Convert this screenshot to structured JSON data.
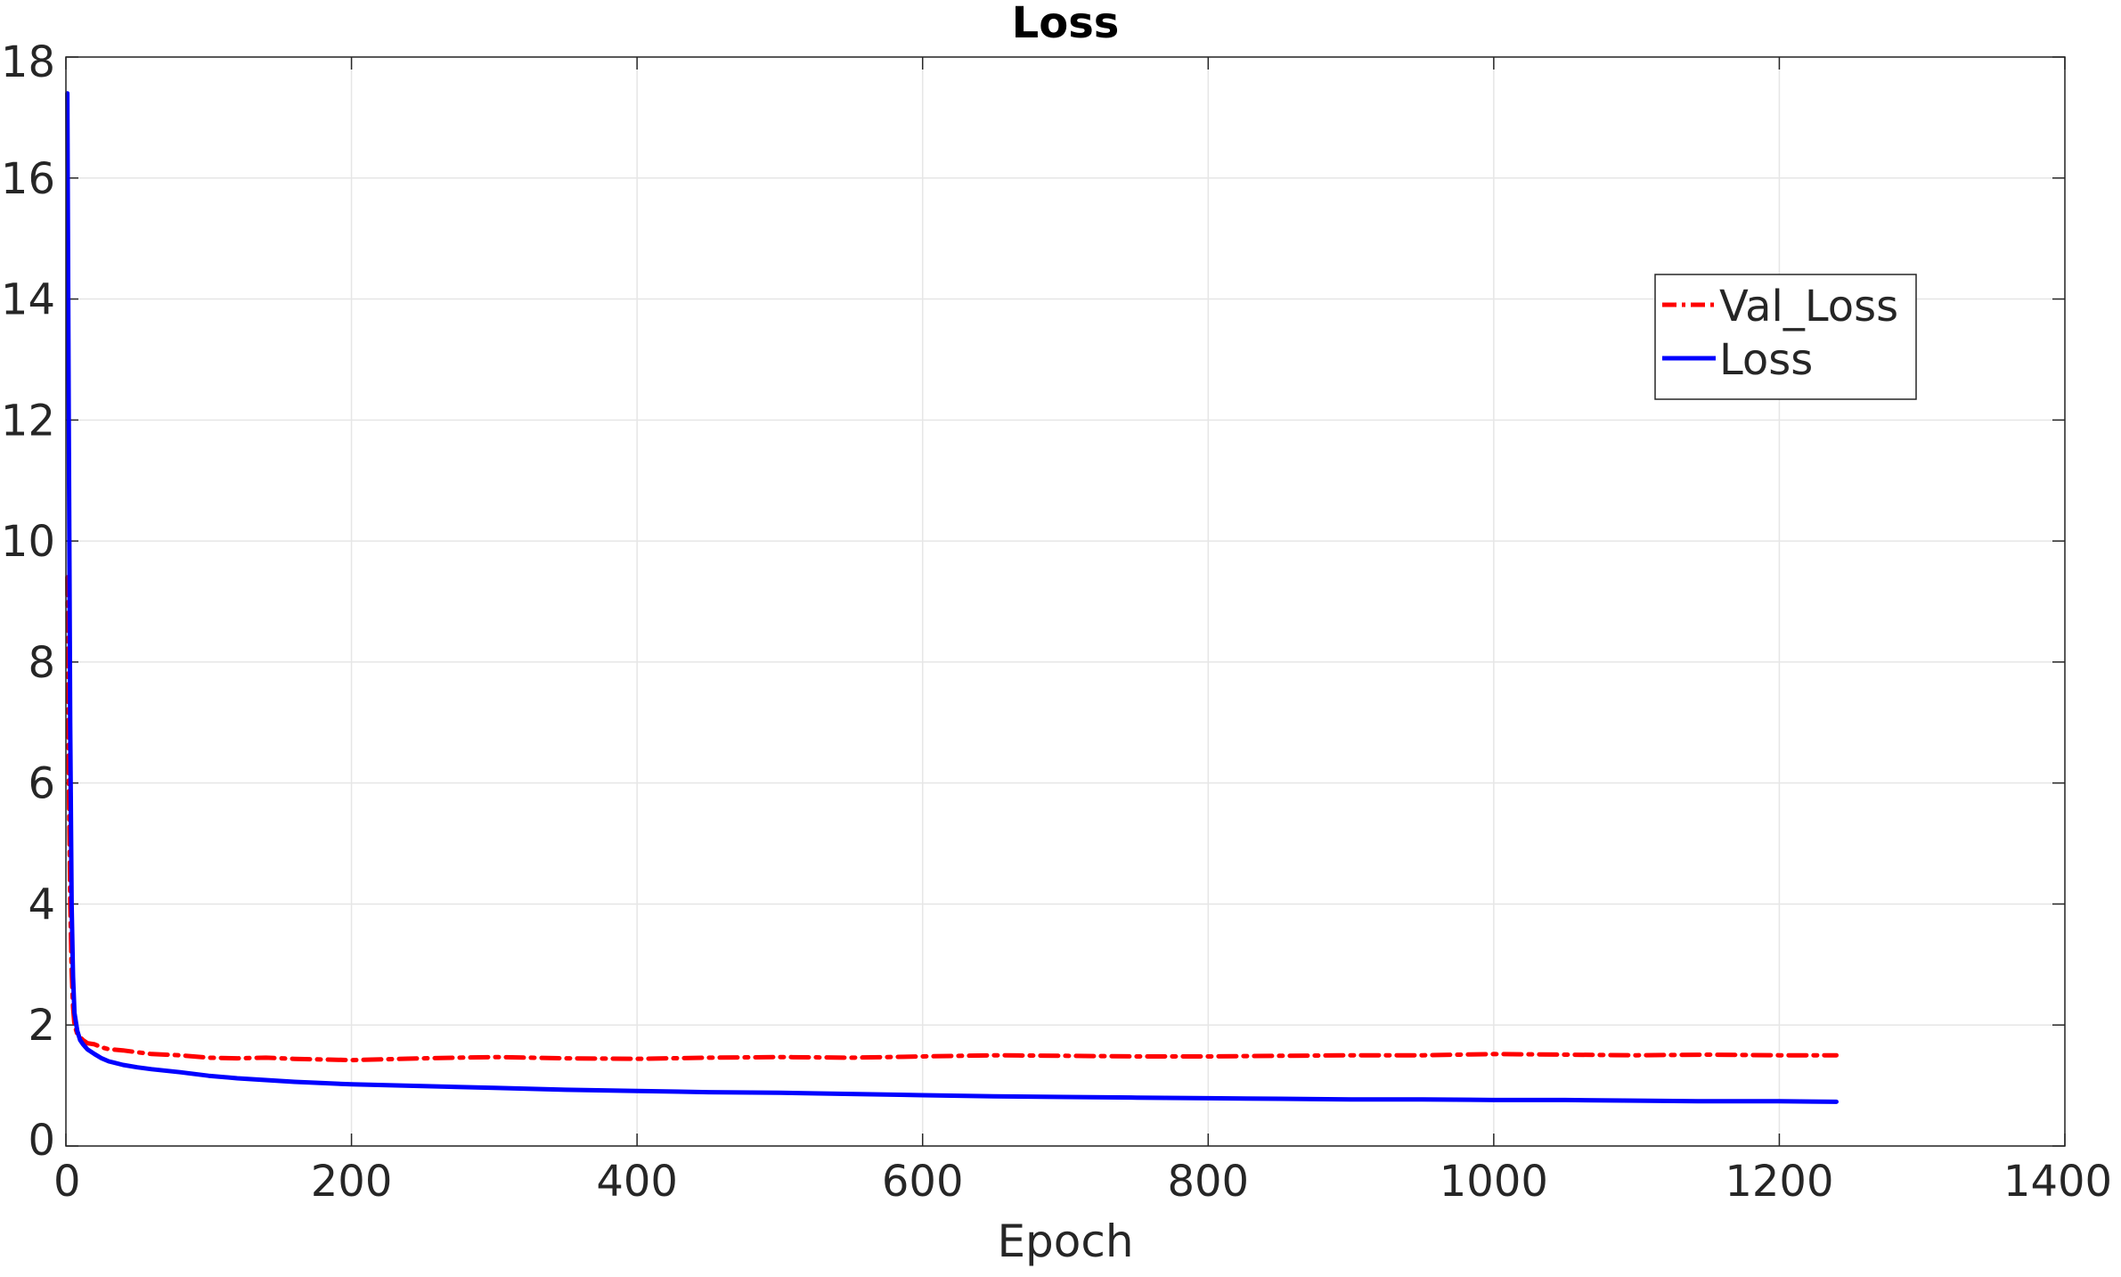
{
  "chart_data": {
    "type": "line",
    "title": "Loss",
    "xlabel": "Epoch",
    "ylabel": "",
    "xlim": [
      0,
      1400
    ],
    "ylim": [
      0,
      18
    ],
    "xticks": [
      0,
      200,
      400,
      600,
      800,
      1000,
      1200,
      1400
    ],
    "yticks": [
      0,
      2,
      4,
      6,
      8,
      10,
      12,
      14,
      16,
      18
    ],
    "xtick_labels": [
      "0",
      "200",
      "400",
      "600",
      "800",
      "1000",
      "1200",
      "1400"
    ],
    "ytick_labels": [
      "0",
      "2",
      "4",
      "6",
      "8",
      "10",
      "12",
      "14",
      "16",
      "18"
    ],
    "grid": true,
    "legend_position": "top-right",
    "series": [
      {
        "name": "Val_Loss",
        "color": "#ff0000",
        "style": "dash-dot",
        "x": [
          1,
          2,
          3,
          4,
          5,
          6,
          8,
          10,
          12,
          15,
          20,
          25,
          30,
          40,
          50,
          60,
          80,
          100,
          120,
          140,
          160,
          180,
          200,
          250,
          300,
          350,
          400,
          450,
          500,
          550,
          600,
          650,
          700,
          750,
          800,
          850,
          900,
          950,
          1000,
          1050,
          1100,
          1150,
          1200,
          1240
        ],
        "y": [
          9.4,
          6.2,
          4.1,
          2.9,
          2.3,
          2.0,
          1.85,
          1.8,
          1.75,
          1.7,
          1.68,
          1.63,
          1.6,
          1.58,
          1.55,
          1.52,
          1.5,
          1.46,
          1.45,
          1.46,
          1.44,
          1.43,
          1.42,
          1.45,
          1.47,
          1.45,
          1.44,
          1.46,
          1.47,
          1.46,
          1.48,
          1.5,
          1.49,
          1.48,
          1.48,
          1.49,
          1.5,
          1.5,
          1.52,
          1.51,
          1.5,
          1.51,
          1.5,
          1.5
        ]
      },
      {
        "name": "Loss",
        "color": "#0000ff",
        "style": "solid",
        "x": [
          1,
          2,
          3,
          4,
          5,
          6,
          8,
          10,
          12,
          15,
          20,
          25,
          30,
          40,
          50,
          60,
          80,
          100,
          120,
          140,
          160,
          180,
          200,
          250,
          300,
          350,
          400,
          450,
          500,
          550,
          600,
          650,
          700,
          750,
          800,
          850,
          900,
          950,
          1000,
          1050,
          1100,
          1150,
          1200,
          1240
        ],
        "y": [
          17.4,
          12.0,
          7.0,
          4.0,
          2.8,
          2.2,
          1.9,
          1.75,
          1.68,
          1.6,
          1.52,
          1.45,
          1.4,
          1.34,
          1.3,
          1.27,
          1.22,
          1.16,
          1.12,
          1.09,
          1.06,
          1.04,
          1.02,
          0.99,
          0.96,
          0.93,
          0.91,
          0.89,
          0.88,
          0.86,
          0.84,
          0.82,
          0.81,
          0.8,
          0.79,
          0.78,
          0.77,
          0.77,
          0.76,
          0.76,
          0.75,
          0.74,
          0.74,
          0.73
        ]
      }
    ]
  }
}
